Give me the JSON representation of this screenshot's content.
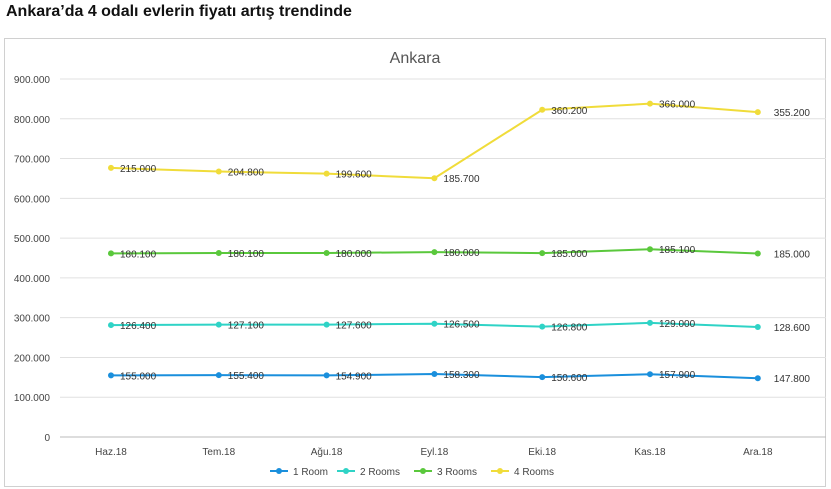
{
  "page_title": "Ankara’da 4 odalı evlerin fiyatı artış trendinde",
  "chart_data": {
    "type": "line",
    "stacked": true,
    "title": "Ankara",
    "xlabel": "",
    "ylabel": "",
    "ylim": [
      0,
      900000
    ],
    "yticks": [
      0,
      100000,
      200000,
      300000,
      400000,
      500000,
      600000,
      700000,
      800000,
      900000
    ],
    "ytick_labels": [
      "0",
      "100.000",
      "200.000",
      "300.000",
      "400.000",
      "500.000",
      "600.000",
      "700.000",
      "800.000",
      "900.000"
    ],
    "categories": [
      "Haz.18",
      "Tem.18",
      "Ağu.18",
      "Eyl.18",
      "Eki.18",
      "Kas.18",
      "Ara.18"
    ],
    "grid": true,
    "legend_position": "bottom",
    "series": [
      {
        "name": "1 Room",
        "color": "#1a8fdc",
        "values": [
          155000,
          155400,
          154900,
          158300,
          150600,
          157900,
          147800
        ],
        "labels": [
          "155.000",
          "155.400",
          "154.900",
          "158.300",
          "150.600",
          "157.900",
          "147.800"
        ]
      },
      {
        "name": "2 Rooms",
        "color": "#2fd3c6",
        "values": [
          126400,
          127100,
          127600,
          126500,
          126800,
          129000,
          128600
        ],
        "labels": [
          "126.400",
          "127.100",
          "127.600",
          "126.500",
          "126.800",
          "129.000",
          "128.600"
        ]
      },
      {
        "name": "3 Rooms",
        "color": "#5ac83c",
        "values": [
          180100,
          180100,
          180000,
          180000,
          185000,
          185100,
          185000
        ],
        "labels": [
          "180.100",
          "180.100",
          "180.000",
          "180.000",
          "185.000",
          "185.100",
          "185.000"
        ]
      },
      {
        "name": "4 Rooms",
        "color": "#f0dc3a",
        "values": [
          215000,
          204800,
          199600,
          185700,
          360200,
          366000,
          355200
        ],
        "labels": [
          "215.000",
          "204.800",
          "199.600",
          "185.700",
          "360.200",
          "366.000",
          "355.200"
        ]
      }
    ]
  }
}
